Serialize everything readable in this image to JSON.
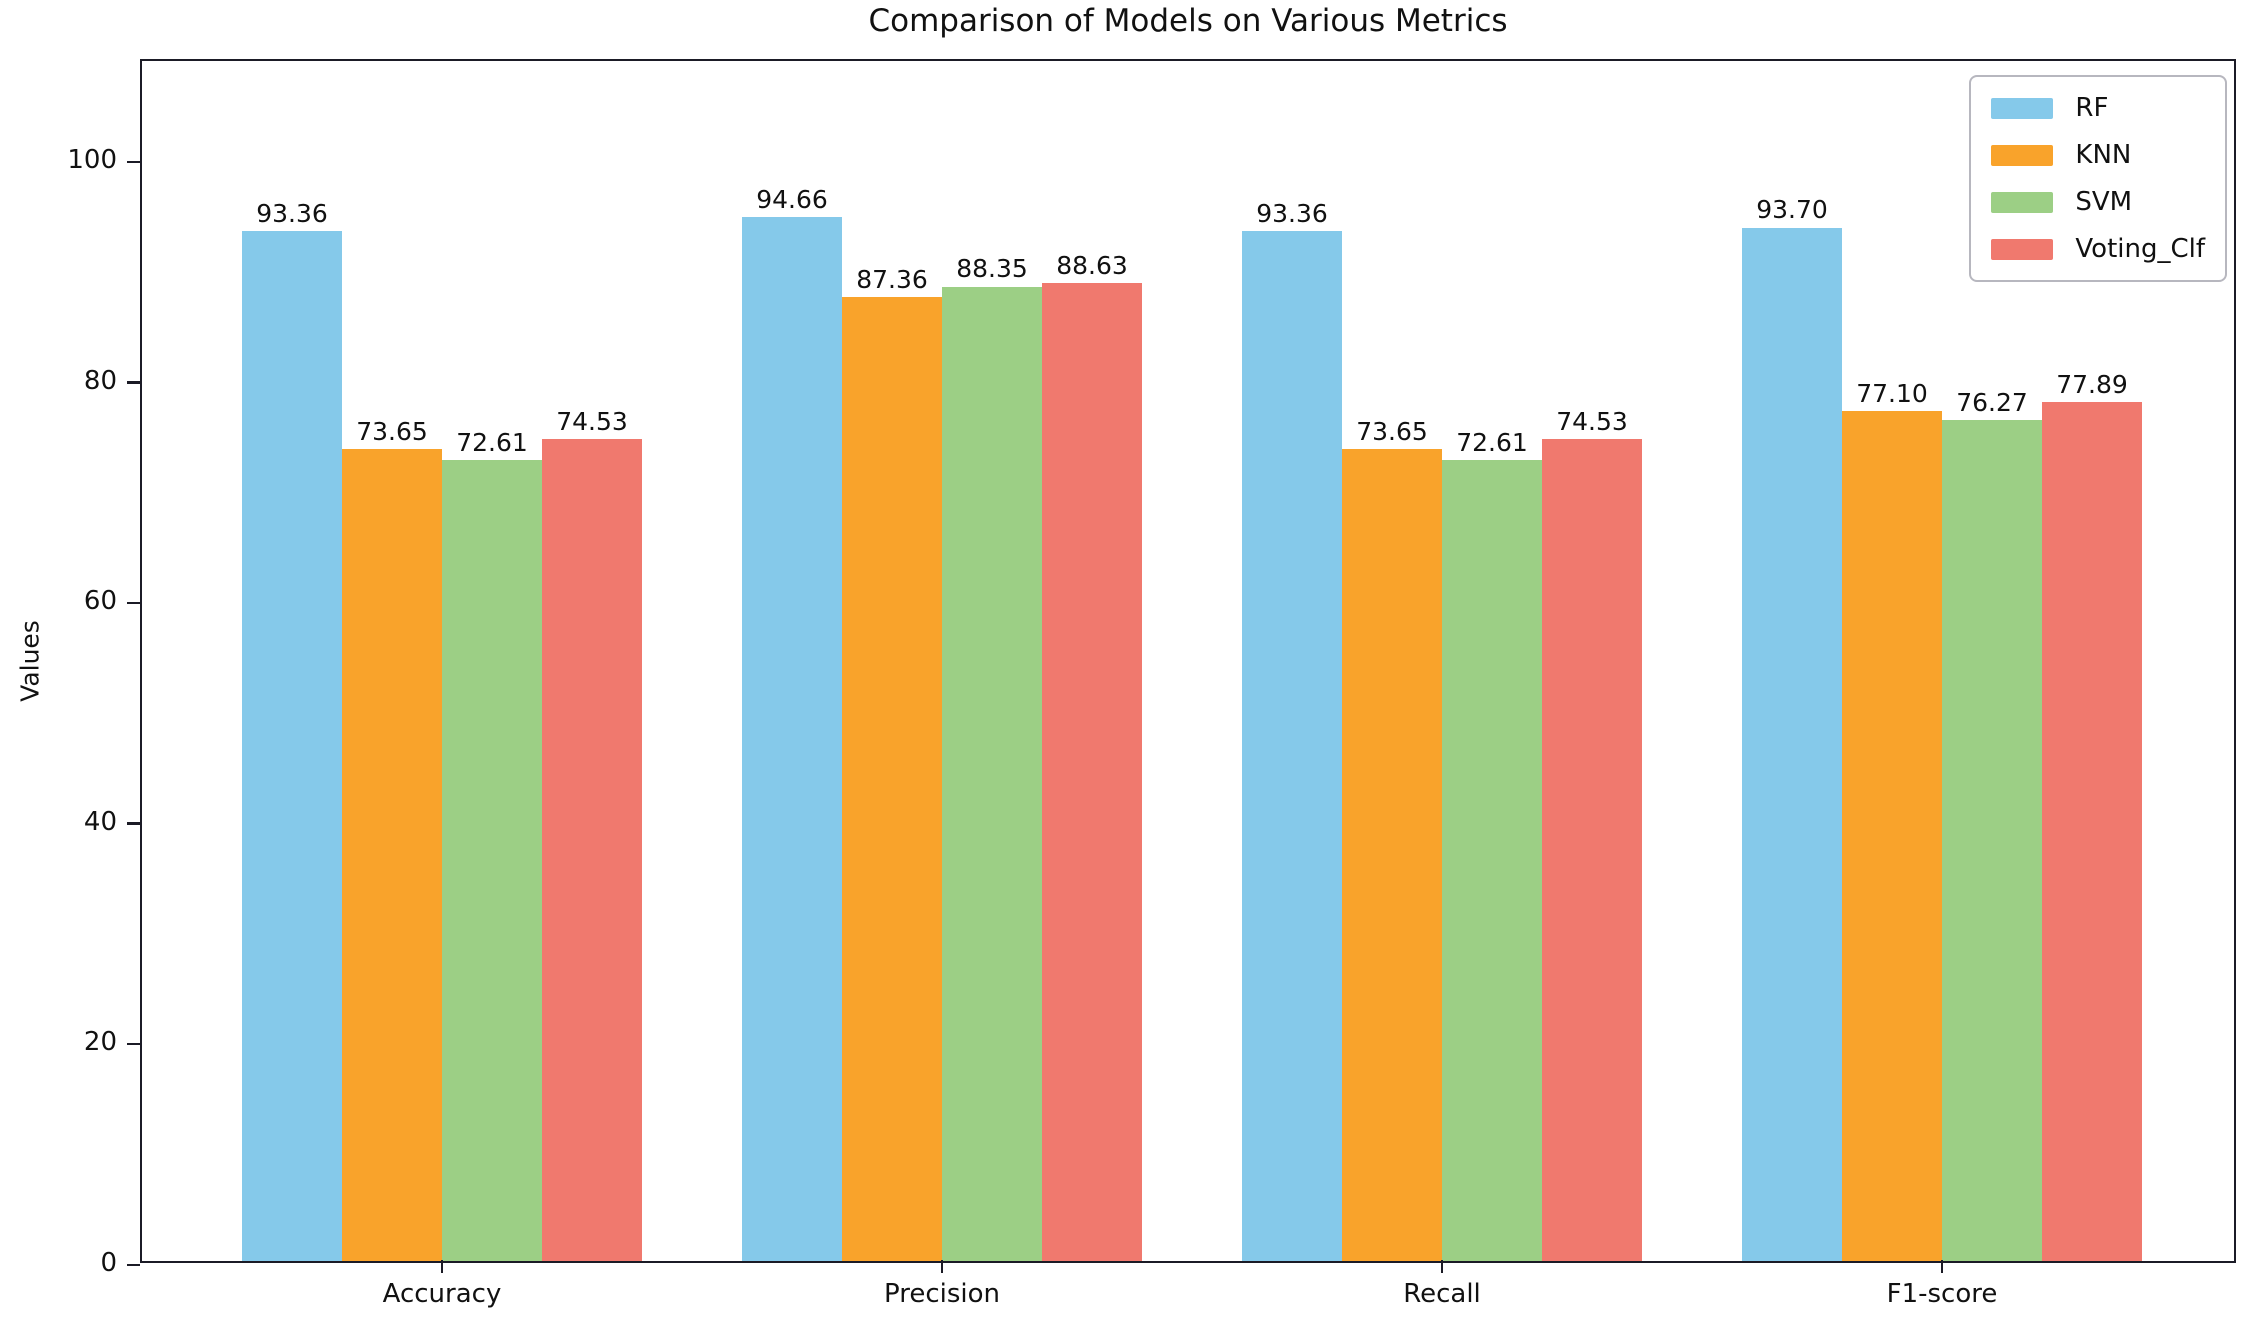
{
  "title": "Comparison of Models on Various Metrics",
  "chart_data": {
    "type": "bar",
    "title": "Comparison of Models on Various Metrics",
    "categories": [
      "Accuracy",
      "Precision",
      "Recall",
      "F1-score"
    ],
    "series": [
      {
        "name": "RF",
        "color": "#85C9EA",
        "values": [
          93.36,
          94.66,
          93.36,
          93.7
        ],
        "labels": [
          "93.36",
          "94.66",
          "93.36",
          "93.70"
        ]
      },
      {
        "name": "KNN",
        "color": "#F9A32B",
        "values": [
          73.65,
          87.36,
          73.65,
          77.1
        ],
        "labels": [
          "73.65",
          "87.36",
          "73.65",
          "77.10"
        ]
      },
      {
        "name": "SVM",
        "color": "#9CCF85",
        "values": [
          72.61,
          88.35,
          72.61,
          76.27
        ],
        "labels": [
          "72.61",
          "88.35",
          "72.61",
          "76.27"
        ]
      },
      {
        "name": "Voting_Clf",
        "color": "#F0796E",
        "values": [
          74.53,
          88.63,
          74.53,
          77.89
        ],
        "labels": [
          "74.53",
          "88.63",
          "74.53",
          "77.89"
        ]
      }
    ],
    "xlabel": "",
    "ylabel": "Values",
    "yticks": [
      0,
      20,
      40,
      60,
      80,
      100
    ],
    "ylim": [
      0,
      109
    ],
    "grid": false,
    "legend": {
      "position": "upper right",
      "entries": [
        "RF",
        "KNN",
        "SVM",
        "Voting_Clf"
      ]
    },
    "axis_color": "#1b1b26",
    "text_color": "#111111",
    "background_color": "#ffffff"
  }
}
